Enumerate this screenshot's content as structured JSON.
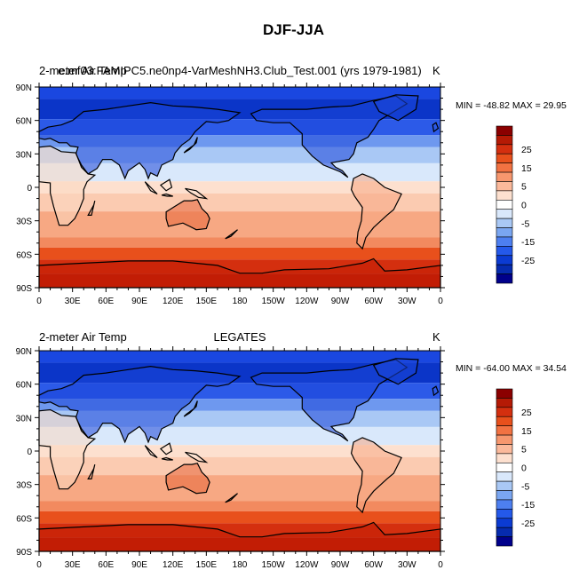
{
  "page_title": "DJF-JJA",
  "panels": [
    {
      "left_title": "2-meter Air Temp",
      "center_title": "e.mf03.FAMIPC5.ne0np4-VarMeshNH3.Club_Test.001 (yrs 1979-1981)",
      "units": "K",
      "minmax": "MIN = -48.82 MAX =  29.95"
    },
    {
      "left_title": "2-meter Air Temp",
      "center_title": "LEGATES",
      "units": "K",
      "minmax": "MIN = -64.00 MAX =  34.54"
    }
  ],
  "lat_ticks": [
    "90N",
    "60N",
    "30N",
    "0",
    "30S",
    "60S",
    "90S"
  ],
  "lon_ticks": [
    "0",
    "30E",
    "60E",
    "90E",
    "120E",
    "150E",
    "180",
    "150W",
    "120W",
    "90W",
    "60W",
    "30W",
    "0"
  ],
  "colorbar": {
    "labels": [
      "25",
      "15",
      "5",
      "0",
      "-5",
      "-15",
      "-25"
    ],
    "colors": [
      "#8b0000",
      "#b51a05",
      "#d42f0f",
      "#e8501c",
      "#f27242",
      "#f7976e",
      "#fbb99b",
      "#fde0cf",
      "#ffffff",
      "#d9e8fb",
      "#a9c8f5",
      "#7aa6f1",
      "#4d7ff0",
      "#2459ea",
      "#0b3bd2",
      "#062bae",
      "#00008b"
    ]
  }
}
